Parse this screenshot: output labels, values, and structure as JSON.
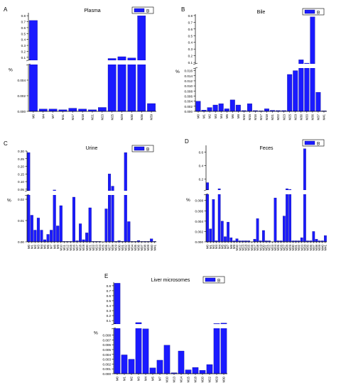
{
  "colors": {
    "bar": "#1a1aff",
    "bar_edge": "#00007a",
    "axis": "#000000"
  },
  "chart_data": [
    {
      "panel": "A",
      "title": "Plasma",
      "type": "bar",
      "broken_axis": true,
      "legend": "B",
      "ylabel": "%",
      "categories": [
        "M0",
        "M4",
        "M7",
        "M11",
        "M17",
        "M18",
        "M21",
        "M23",
        "M25",
        "M29",
        "M30",
        "M36",
        "M39"
      ],
      "values": [
        0.72,
        0.0003,
        0.0003,
        0.0002,
        0.0004,
        0.0003,
        0.0002,
        0.0005,
        0.08,
        0.11,
        0.09,
        0.8,
        0.001
      ],
      "lower": {
        "ylim": [
          0,
          0.006
        ],
        "ticks": [
          "0.000",
          "0.002",
          "0.004"
        ]
      },
      "upper": {
        "ylim": [
          0.05,
          0.85
        ],
        "ticks": [
          "0.1",
          "0.2",
          "0.3",
          "0.4",
          "0.5",
          "0.6",
          "0.7",
          "0.8"
        ]
      }
    },
    {
      "panel": "B",
      "title": "Bile",
      "type": "bar",
      "broken_axis": true,
      "legend": "B",
      "ylabel": "%",
      "categories": [
        "M0",
        "M1",
        "M2",
        "M3",
        "M4",
        "M5",
        "M6",
        "M8",
        "M10",
        "M15",
        "M16",
        "M17",
        "M18",
        "M21",
        "M22",
        "M23",
        "M25",
        "M29",
        "M30",
        "M33",
        "M36",
        "M37",
        "M41"
      ],
      "values": [
        0.004,
        0.0005,
        0.0015,
        0.0025,
        0.003,
        0.001,
        0.0045,
        0.0025,
        0.0003,
        0.003,
        0.0003,
        0.0002,
        0.001,
        0.0004,
        0.0003,
        0.0003,
        0.0145,
        0.016,
        0.14,
        0.09,
        0.78,
        0.0075,
        0.0002
      ],
      "lower": {
        "ylim": [
          0,
          0.017
        ],
        "ticks": [
          "0.000",
          "0.002",
          "0.004",
          "0.006",
          "0.008",
          "0.010",
          "0.012",
          "0.014",
          "0.016"
        ]
      },
      "upper": {
        "ylim": [
          0.08,
          0.82
        ],
        "ticks": [
          "0.1",
          "0.2",
          "0.3",
          "0.4",
          "0.5",
          "0.6",
          "0.7",
          "0.8"
        ]
      }
    },
    {
      "panel": "C",
      "title": "Urine",
      "type": "bar",
      "broken_axis": true,
      "legend": "B",
      "ylabel": "%",
      "categories": [
        "M0",
        "M1",
        "M2",
        "M3",
        "M4",
        "M5",
        "M6",
        "M7",
        "M8",
        "M9",
        "M10",
        "M11",
        "M12",
        "M15",
        "M16",
        "M17",
        "M18",
        "M19",
        "M20",
        "M21",
        "M22",
        "M23",
        "M24",
        "M25",
        "M26",
        "M27",
        "M28",
        "M29",
        "M30",
        "M31",
        "M32",
        "M33",
        "M34",
        "M35",
        "M36",
        "M37",
        "M38",
        "M39",
        "M40",
        "M41"
      ],
      "values": [
        0.29,
        0.0125,
        0.0055,
        0.0112,
        0.0055,
        0.001,
        0.0035,
        0.0055,
        0.045,
        0.0075,
        0.017,
        0.0002,
        0.0002,
        0.0002,
        0.021,
        0.0005,
        0.0085,
        0.001,
        0.0042,
        0.016,
        0.0002,
        0.0002,
        0.0002,
        0.0,
        0.0155,
        0.15,
        0.07,
        0.0002,
        0.0005,
        0.0002,
        0.29,
        0.0095,
        0.0002,
        0.0002,
        0.0006,
        0.0002,
        0.0002,
        0.0002,
        0.0014,
        0.0002
      ],
      "lower": {
        "ylim": [
          0,
          0.022
        ],
        "ticks": [
          "0.00",
          "0.01",
          "0.02"
        ]
      },
      "upper": {
        "ylim": [
          0.04,
          0.3
        ],
        "ticks": [
          "0.05",
          "0.10",
          "0.15",
          "0.20",
          "0.25",
          "0.30"
        ]
      }
    },
    {
      "panel": "D",
      "title": "Feces",
      "type": "bar",
      "broken_axis": true,
      "legend": "B",
      "ylabel": "%",
      "categories": [
        "M0",
        "M1",
        "M2",
        "M3",
        "M4",
        "M5",
        "M6",
        "M7",
        "M8",
        "M9",
        "M10",
        "M12",
        "M13",
        "M14",
        "M15",
        "M16",
        "M17",
        "M18",
        "M19",
        "M20",
        "M21",
        "M22",
        "M23",
        "M24",
        "M25",
        "M26",
        "M27",
        "M28",
        "M29",
        "M30",
        "M31",
        "M32",
        "M33",
        "M34",
        "M35",
        "M36",
        "M37",
        "M38",
        "M39",
        "M40",
        "M41"
      ],
      "values": [
        0.15,
        0.0025,
        0.0082,
        0.0002,
        0.06,
        0.004,
        0.001,
        0.0038,
        0.0008,
        0.0002,
        0.0006,
        0.0002,
        0.0002,
        0.0002,
        0.0002,
        0.0,
        0.0005,
        0.0045,
        0.0002,
        0.0022,
        0.0002,
        0.0002,
        0.0,
        0.0085,
        0.0002,
        0.0002,
        0.005,
        0.06,
        0.05,
        0.0002,
        0.0002,
        0.0002,
        0.0008,
        0.65,
        0.0002,
        0.0002,
        0.002,
        0.0005,
        0.0002,
        0.0002,
        0.0012
      ],
      "lower": {
        "ylim": [
          0,
          0.0092
        ],
        "ticks": [
          "0.000",
          "0.002",
          "0.004",
          "0.006",
          "0.008"
        ]
      },
      "upper": {
        "ylim": [
          0.04,
          0.7
        ],
        "ticks": [
          "0.2",
          "0.4",
          "0.6"
        ]
      }
    },
    {
      "panel": "E",
      "title": "Liver microsomes",
      "type": "bar",
      "broken_axis": true,
      "legend": "B",
      "ylabel": "%",
      "categories": [
        "M0",
        "M1",
        "M2",
        "M3",
        "M4",
        "M5",
        "M7",
        "M10",
        "M13",
        "M14",
        "M15",
        "M18",
        "M20",
        "M22",
        "M29",
        "M30"
      ],
      "values": [
        0.85,
        0.0039,
        0.003,
        0.06,
        0.0093,
        0.0012,
        0.0028,
        0.0059,
        0.0002,
        0.0047,
        0.0008,
        0.0013,
        0.0007,
        0.0019,
        0.04,
        0.05
      ],
      "lower": {
        "ylim": [
          0,
          0.0094
        ],
        "ticks": [
          "0.000",
          "0.001",
          "0.002",
          "0.003",
          "0.004",
          "0.005",
          "0.006",
          "0.007",
          "0.008"
        ]
      },
      "upper": {
        "ylim": [
          0.03,
          0.87
        ],
        "ticks": [
          "0.1",
          "0.2",
          "0.3",
          "0.4",
          "0.5",
          "0.6",
          "0.7",
          "0.8"
        ]
      }
    }
  ]
}
